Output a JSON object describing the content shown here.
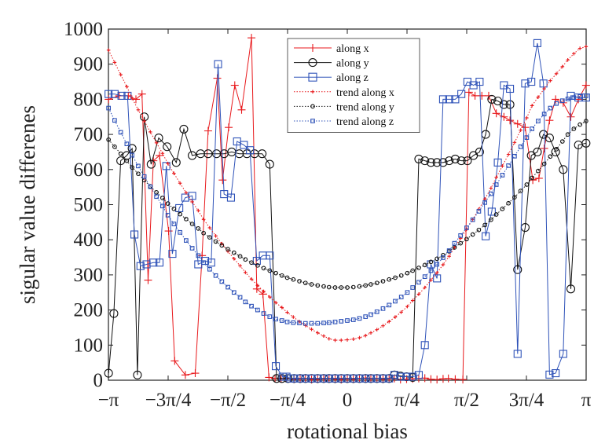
{
  "chart_data": {
    "type": "line",
    "xlabel": "rotational bias",
    "ylabel": "sigular value differenes",
    "xlim": [
      -3.1416,
      3.1416
    ],
    "ylim": [
      0,
      1000
    ],
    "yticks": [
      0,
      100,
      200,
      300,
      400,
      500,
      600,
      700,
      800,
      900,
      1000
    ],
    "xticks": [
      {
        "value": -3.1416,
        "label": "−π"
      },
      {
        "value": -2.3562,
        "label": "−3π/4"
      },
      {
        "value": -1.5708,
        "label": "−π/2"
      },
      {
        "value": -0.7854,
        "label": "−π/4"
      },
      {
        "value": 0,
        "label": "0"
      },
      {
        "value": 0.7854,
        "label": "π/4"
      },
      {
        "value": 1.5708,
        "label": "π/2"
      },
      {
        "value": 2.3562,
        "label": "3π/4"
      },
      {
        "value": 3.1416,
        "label": "π"
      }
    ],
    "grid": false,
    "legend_position": "top-center",
    "series": [
      {
        "name": "along x",
        "color": "#e8191c",
        "marker": "plus",
        "line": "solid",
        "x": [
          -3.14,
          -3.0,
          -2.88,
          -2.78,
          -2.7,
          -2.62,
          -2.55,
          -2.47,
          -2.35,
          -2.27,
          -2.13,
          -2.0,
          -1.91,
          -1.83,
          -1.71,
          -1.64,
          -1.56,
          -1.48,
          -1.39,
          -1.26,
          -1.19,
          -1.11,
          -1.03,
          -0.95,
          -0.87,
          -0.8,
          -0.75,
          -0.7,
          -0.62,
          -0.55,
          -0.47,
          -0.39,
          -0.31,
          -0.24,
          -0.16,
          -0.08,
          0,
          0.08,
          0.16,
          0.24,
          0.31,
          0.39,
          0.47,
          0.55,
          0.62,
          0.7,
          0.78,
          0.86,
          0.94,
          1.02,
          1.1,
          1.18,
          1.26,
          1.33,
          1.42,
          1.52,
          1.6,
          1.68,
          1.77,
          1.86,
          1.96,
          2.06,
          2.14,
          2.24,
          2.34,
          2.44,
          2.52,
          2.59,
          2.66,
          2.74,
          2.84,
          2.94,
          3.04,
          3.14
        ],
        "y": [
          800,
          810,
          810,
          800,
          815,
          285,
          625,
          640,
          425,
          55,
          15,
          20,
          355,
          710,
          860,
          570,
          720,
          840,
          770,
          975,
          260,
          245,
          8,
          5,
          4,
          6,
          5,
          3,
          4,
          5,
          2,
          3,
          4,
          5,
          3,
          2,
          4,
          3,
          5,
          6,
          4,
          5,
          3,
          4,
          5,
          2,
          3,
          4,
          5,
          6,
          3,
          2,
          4,
          5,
          3,
          2,
          820,
          810,
          810,
          810,
          760,
          750,
          740,
          730,
          720,
          570,
          575,
          660,
          740,
          800,
          790,
          750,
          800,
          840
        ]
      },
      {
        "name": "along y",
        "color": "#111111",
        "marker": "circle",
        "line": "solid",
        "x": [
          -3.14,
          -3.07,
          -2.98,
          -2.9,
          -2.83,
          -2.76,
          -2.67,
          -2.58,
          -2.48,
          -2.37,
          -2.25,
          -2.15,
          -2.04,
          -1.93,
          -1.83,
          -1.72,
          -1.62,
          -1.52,
          -1.42,
          -1.32,
          -1.22,
          -1.12,
          -1.02,
          -0.93,
          -0.86,
          -0.78,
          -0.7,
          -0.62,
          -0.55,
          -0.47,
          -0.39,
          -0.31,
          -0.24,
          -0.16,
          -0.08,
          0,
          0.08,
          0.16,
          0.24,
          0.31,
          0.39,
          0.47,
          0.55,
          0.62,
          0.7,
          0.78,
          0.86,
          0.94,
          1.02,
          1.1,
          1.18,
          1.26,
          1.34,
          1.42,
          1.5,
          1.58,
          1.66,
          1.74,
          1.82,
          1.9,
          1.98,
          2.06,
          2.14,
          2.24,
          2.34,
          2.42,
          2.5,
          2.58,
          2.66,
          2.74,
          2.84,
          2.94,
          3.04,
          3.14
        ],
        "y": [
          20,
          190,
          625,
          640,
          660,
          15,
          750,
          615,
          690,
          665,
          620,
          715,
          640,
          645,
          645,
          645,
          645,
          650,
          645,
          645,
          645,
          645,
          615,
          5,
          5,
          5,
          5,
          5,
          5,
          5,
          5,
          5,
          5,
          5,
          5,
          5,
          5,
          5,
          5,
          5,
          5,
          5,
          5,
          15,
          12,
          10,
          8,
          630,
          625,
          620,
          620,
          620,
          625,
          630,
          625,
          625,
          640,
          650,
          700,
          800,
          795,
          785,
          785,
          315,
          435,
          640,
          650,
          700,
          690,
          650,
          600,
          260,
          670,
          675
        ]
      },
      {
        "name": "along z",
        "color": "#2e52b8",
        "marker": "square",
        "line": "solid",
        "x": [
          -3.14,
          -3.06,
          -2.97,
          -2.89,
          -2.8,
          -2.72,
          -2.64,
          -2.55,
          -2.47,
          -2.38,
          -2.3,
          -2.21,
          -2.13,
          -2.04,
          -1.96,
          -1.87,
          -1.79,
          -1.7,
          -1.62,
          -1.53,
          -1.45,
          -1.36,
          -1.28,
          -1.19,
          -1.11,
          -1.02,
          -0.94,
          -0.85,
          -0.8,
          -0.75,
          -0.7,
          -0.62,
          -0.55,
          -0.47,
          -0.39,
          -0.31,
          -0.24,
          -0.16,
          -0.08,
          0,
          0.08,
          0.16,
          0.24,
          0.31,
          0.39,
          0.47,
          0.55,
          0.62,
          0.7,
          0.78,
          0.86,
          0.94,
          1.02,
          1.1,
          1.18,
          1.26,
          1.34,
          1.42,
          1.5,
          1.58,
          1.66,
          1.74,
          1.82,
          1.9,
          1.98,
          2.06,
          2.14,
          2.24,
          2.34,
          2.42,
          2.5,
          2.58,
          2.66,
          2.74,
          2.84,
          2.94,
          3.04,
          3.14
        ],
        "y": [
          815,
          815,
          810,
          810,
          415,
          325,
          330,
          335,
          335,
          610,
          360,
          490,
          520,
          525,
          330,
          340,
          335,
          900,
          530,
          520,
          680,
          670,
          655,
          340,
          355,
          355,
          40,
          10,
          10,
          5,
          5,
          5,
          5,
          5,
          5,
          5,
          5,
          5,
          5,
          5,
          5,
          5,
          5,
          5,
          5,
          5,
          5,
          15,
          10,
          10,
          10,
          15,
          100,
          330,
          290,
          800,
          800,
          800,
          815,
          850,
          840,
          850,
          410,
          480,
          620,
          840,
          830,
          75,
          845,
          850,
          960,
          845,
          16,
          20,
          75,
          810,
          805,
          805
        ]
      },
      {
        "name": "trend along x",
        "color": "#e8191c",
        "marker": "plus",
        "line": "dotted",
        "x": [
          -3.14,
          -3.06,
          -2.98,
          -2.9,
          -2.83,
          -2.75,
          -2.67,
          -2.59,
          -2.51,
          -2.43,
          -2.36,
          -2.28,
          -2.2,
          -2.12,
          -2.04,
          -1.96,
          -1.89,
          -1.81,
          -1.73,
          -1.65,
          -1.57,
          -1.49,
          -1.41,
          -1.34,
          -1.26,
          -1.18,
          -1.1,
          -1.02,
          -0.94,
          -0.86,
          -0.79,
          -0.71,
          -0.63,
          -0.55,
          -0.47,
          -0.39,
          -0.31,
          -0.24,
          -0.16,
          -0.08,
          0,
          0.08,
          0.16,
          0.24,
          0.31,
          0.39,
          0.47,
          0.55,
          0.63,
          0.71,
          0.79,
          0.86,
          0.94,
          1.02,
          1.1,
          1.18,
          1.26,
          1.34,
          1.41,
          1.49,
          1.57,
          1.65,
          1.73,
          1.81,
          1.89,
          1.96,
          2.04,
          2.12,
          2.2,
          2.28,
          2.36,
          2.43,
          2.51,
          2.59,
          2.67,
          2.75,
          2.83,
          2.9,
          2.98,
          3.06,
          3.14
        ],
        "y": [
          940,
          905,
          870,
          836,
          803,
          770,
          738,
          707,
          676,
          646,
          617,
          589,
          561,
          534,
          508,
          483,
          458,
          434,
          411,
          389,
          367,
          346,
          326,
          307,
          288,
          270,
          253,
          237,
          221,
          207,
          193,
          180,
          167,
          156,
          145,
          135,
          126,
          118,
          114,
          114,
          115,
          117,
          121,
          127,
          135,
          144,
          155,
          167,
          180,
          194,
          210,
          227,
          245,
          264,
          285,
          306,
          329,
          353,
          378,
          404,
          430,
          458,
          487,
          516,
          547,
          578,
          610,
          643,
          677,
          712,
          747,
          782,
          806,
          830,
          853,
          873,
          893,
          912,
          930,
          945,
          950
        ]
      },
      {
        "name": "trend along y",
        "color": "#111111",
        "marker": "circle",
        "line": "dotted",
        "x": [
          -3.14,
          -3.06,
          -2.98,
          -2.9,
          -2.83,
          -2.75,
          -2.67,
          -2.59,
          -2.51,
          -2.43,
          -2.36,
          -2.28,
          -2.2,
          -2.12,
          -2.04,
          -1.96,
          -1.89,
          -1.81,
          -1.73,
          -1.65,
          -1.57,
          -1.49,
          -1.41,
          -1.34,
          -1.26,
          -1.18,
          -1.1,
          -1.02,
          -0.94,
          -0.86,
          -0.79,
          -0.71,
          -0.63,
          -0.55,
          -0.47,
          -0.39,
          -0.31,
          -0.24,
          -0.16,
          -0.08,
          0,
          0.08,
          0.16,
          0.24,
          0.31,
          0.39,
          0.47,
          0.55,
          0.63,
          0.71,
          0.79,
          0.86,
          0.94,
          1.02,
          1.1,
          1.18,
          1.26,
          1.34,
          1.41,
          1.49,
          1.57,
          1.65,
          1.73,
          1.81,
          1.89,
          1.96,
          2.04,
          2.12,
          2.2,
          2.28,
          2.36,
          2.43,
          2.51,
          2.59,
          2.67,
          2.75,
          2.83,
          2.9,
          2.98,
          3.06,
          3.14
        ],
        "y": [
          685,
          665,
          645,
          625,
          606,
          588,
          570,
          552,
          535,
          519,
          503,
          488,
          473,
          459,
          445,
          432,
          419,
          407,
          395,
          384,
          373,
          363,
          353,
          344,
          335,
          327,
          319,
          312,
          305,
          298,
          292,
          287,
          282,
          277,
          273,
          270,
          267,
          265,
          264,
          264,
          264,
          265,
          267,
          270,
          273,
          277,
          282,
          287,
          292,
          298,
          305,
          312,
          320,
          328,
          337,
          346,
          356,
          367,
          378,
          390,
          402,
          415,
          428,
          442,
          457,
          472,
          488,
          504,
          521,
          539,
          557,
          576,
          596,
          616,
          637,
          658,
          680,
          700,
          716,
          728,
          738
        ]
      },
      {
        "name": "trend along z",
        "color": "#2e52b8",
        "marker": "square",
        "line": "dotted",
        "x": [
          -3.14,
          -3.06,
          -2.98,
          -2.9,
          -2.83,
          -2.75,
          -2.67,
          -2.59,
          -2.51,
          -2.43,
          -2.36,
          -2.28,
          -2.2,
          -2.12,
          -2.04,
          -1.96,
          -1.89,
          -1.81,
          -1.73,
          -1.65,
          -1.57,
          -1.49,
          -1.41,
          -1.34,
          -1.26,
          -1.18,
          -1.1,
          -1.02,
          -0.94,
          -0.86,
          -0.79,
          -0.71,
          -0.63,
          -0.55,
          -0.47,
          -0.39,
          -0.31,
          -0.24,
          -0.16,
          -0.08,
          0,
          0.08,
          0.16,
          0.24,
          0.31,
          0.39,
          0.47,
          0.55,
          0.63,
          0.71,
          0.79,
          0.86,
          0.94,
          1.02,
          1.1,
          1.18,
          1.26,
          1.34,
          1.41,
          1.49,
          1.57,
          1.65,
          1.73,
          1.81,
          1.89,
          1.96,
          2.04,
          2.12,
          2.2,
          2.28,
          2.36,
          2.43,
          2.51,
          2.59,
          2.67,
          2.75,
          2.83,
          2.9,
          2.98,
          3.06,
          3.14
        ],
        "y": [
          775,
          740,
          706,
          673,
          641,
          610,
          580,
          551,
          523,
          496,
          470,
          445,
          421,
          398,
          376,
          355,
          335,
          316,
          298,
          281,
          265,
          250,
          236,
          223,
          211,
          200,
          190,
          181,
          174,
          170,
          166,
          164,
          163,
          162,
          162,
          162,
          163,
          164,
          166,
          168,
          170,
          172,
          176,
          181,
          187,
          195,
          204,
          214,
          225,
          237,
          250,
          264,
          279,
          295,
          312,
          330,
          349,
          369,
          390,
          412,
          434,
          457,
          481,
          506,
          531,
          557,
          584,
          611,
          638,
          665,
          691,
          716,
          738,
          758,
          775,
          788,
          796,
          801,
          805,
          808,
          810
        ]
      }
    ]
  }
}
